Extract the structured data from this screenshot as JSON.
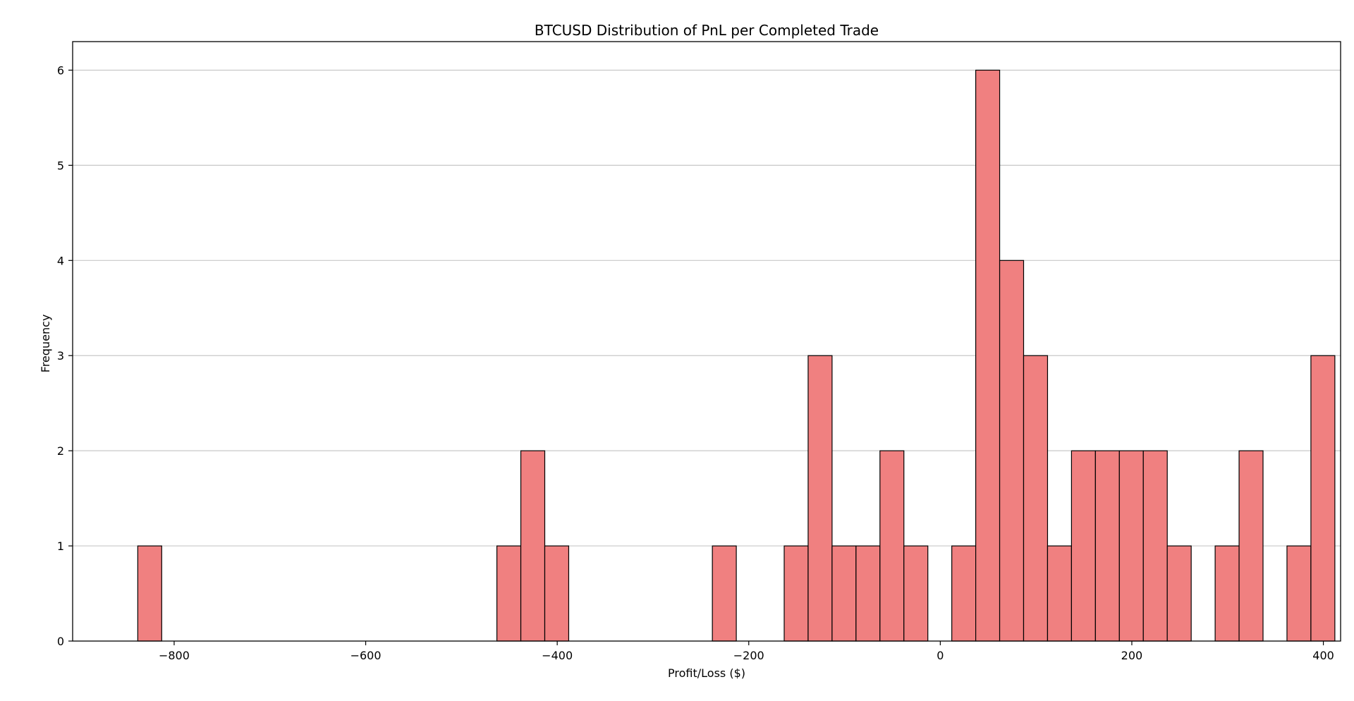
{
  "chart_data": {
    "type": "bar",
    "title": "BTCUSD Distribution of PnL per Completed Trade",
    "xlabel": "Profit/Loss ($)",
    "ylabel": "Frequency",
    "xlim": [
      -906,
      418
    ],
    "ylim": [
      0,
      6.3
    ],
    "xticks": [
      -800,
      -600,
      -400,
      -200,
      0,
      200,
      400
    ],
    "xtick_labels": [
      "−800",
      "−600",
      "−400",
      "−200",
      "0",
      "200",
      "400"
    ],
    "yticks": [
      0,
      1,
      2,
      3,
      4,
      5,
      6
    ],
    "ytick_labels": [
      "0",
      "1",
      "2",
      "3",
      "4",
      "5",
      "6"
    ],
    "grid": "y",
    "bin_start": -838,
    "bin_width": 25,
    "counts": [
      1,
      0,
      0,
      0,
      0,
      0,
      0,
      0,
      0,
      0,
      0,
      0,
      0,
      0,
      0,
      1,
      2,
      1,
      0,
      0,
      0,
      0,
      0,
      0,
      1,
      0,
      0,
      1,
      3,
      1,
      1,
      2,
      1,
      0,
      1,
      6,
      4,
      3,
      1,
      2,
      2,
      2,
      2,
      1,
      0,
      1,
      2,
      0,
      1,
      3
    ],
    "colors": {
      "bar_fill": "#F08080",
      "bar_edge": "#000000",
      "grid": "#c8c8c8",
      "axis": "#000000"
    }
  }
}
